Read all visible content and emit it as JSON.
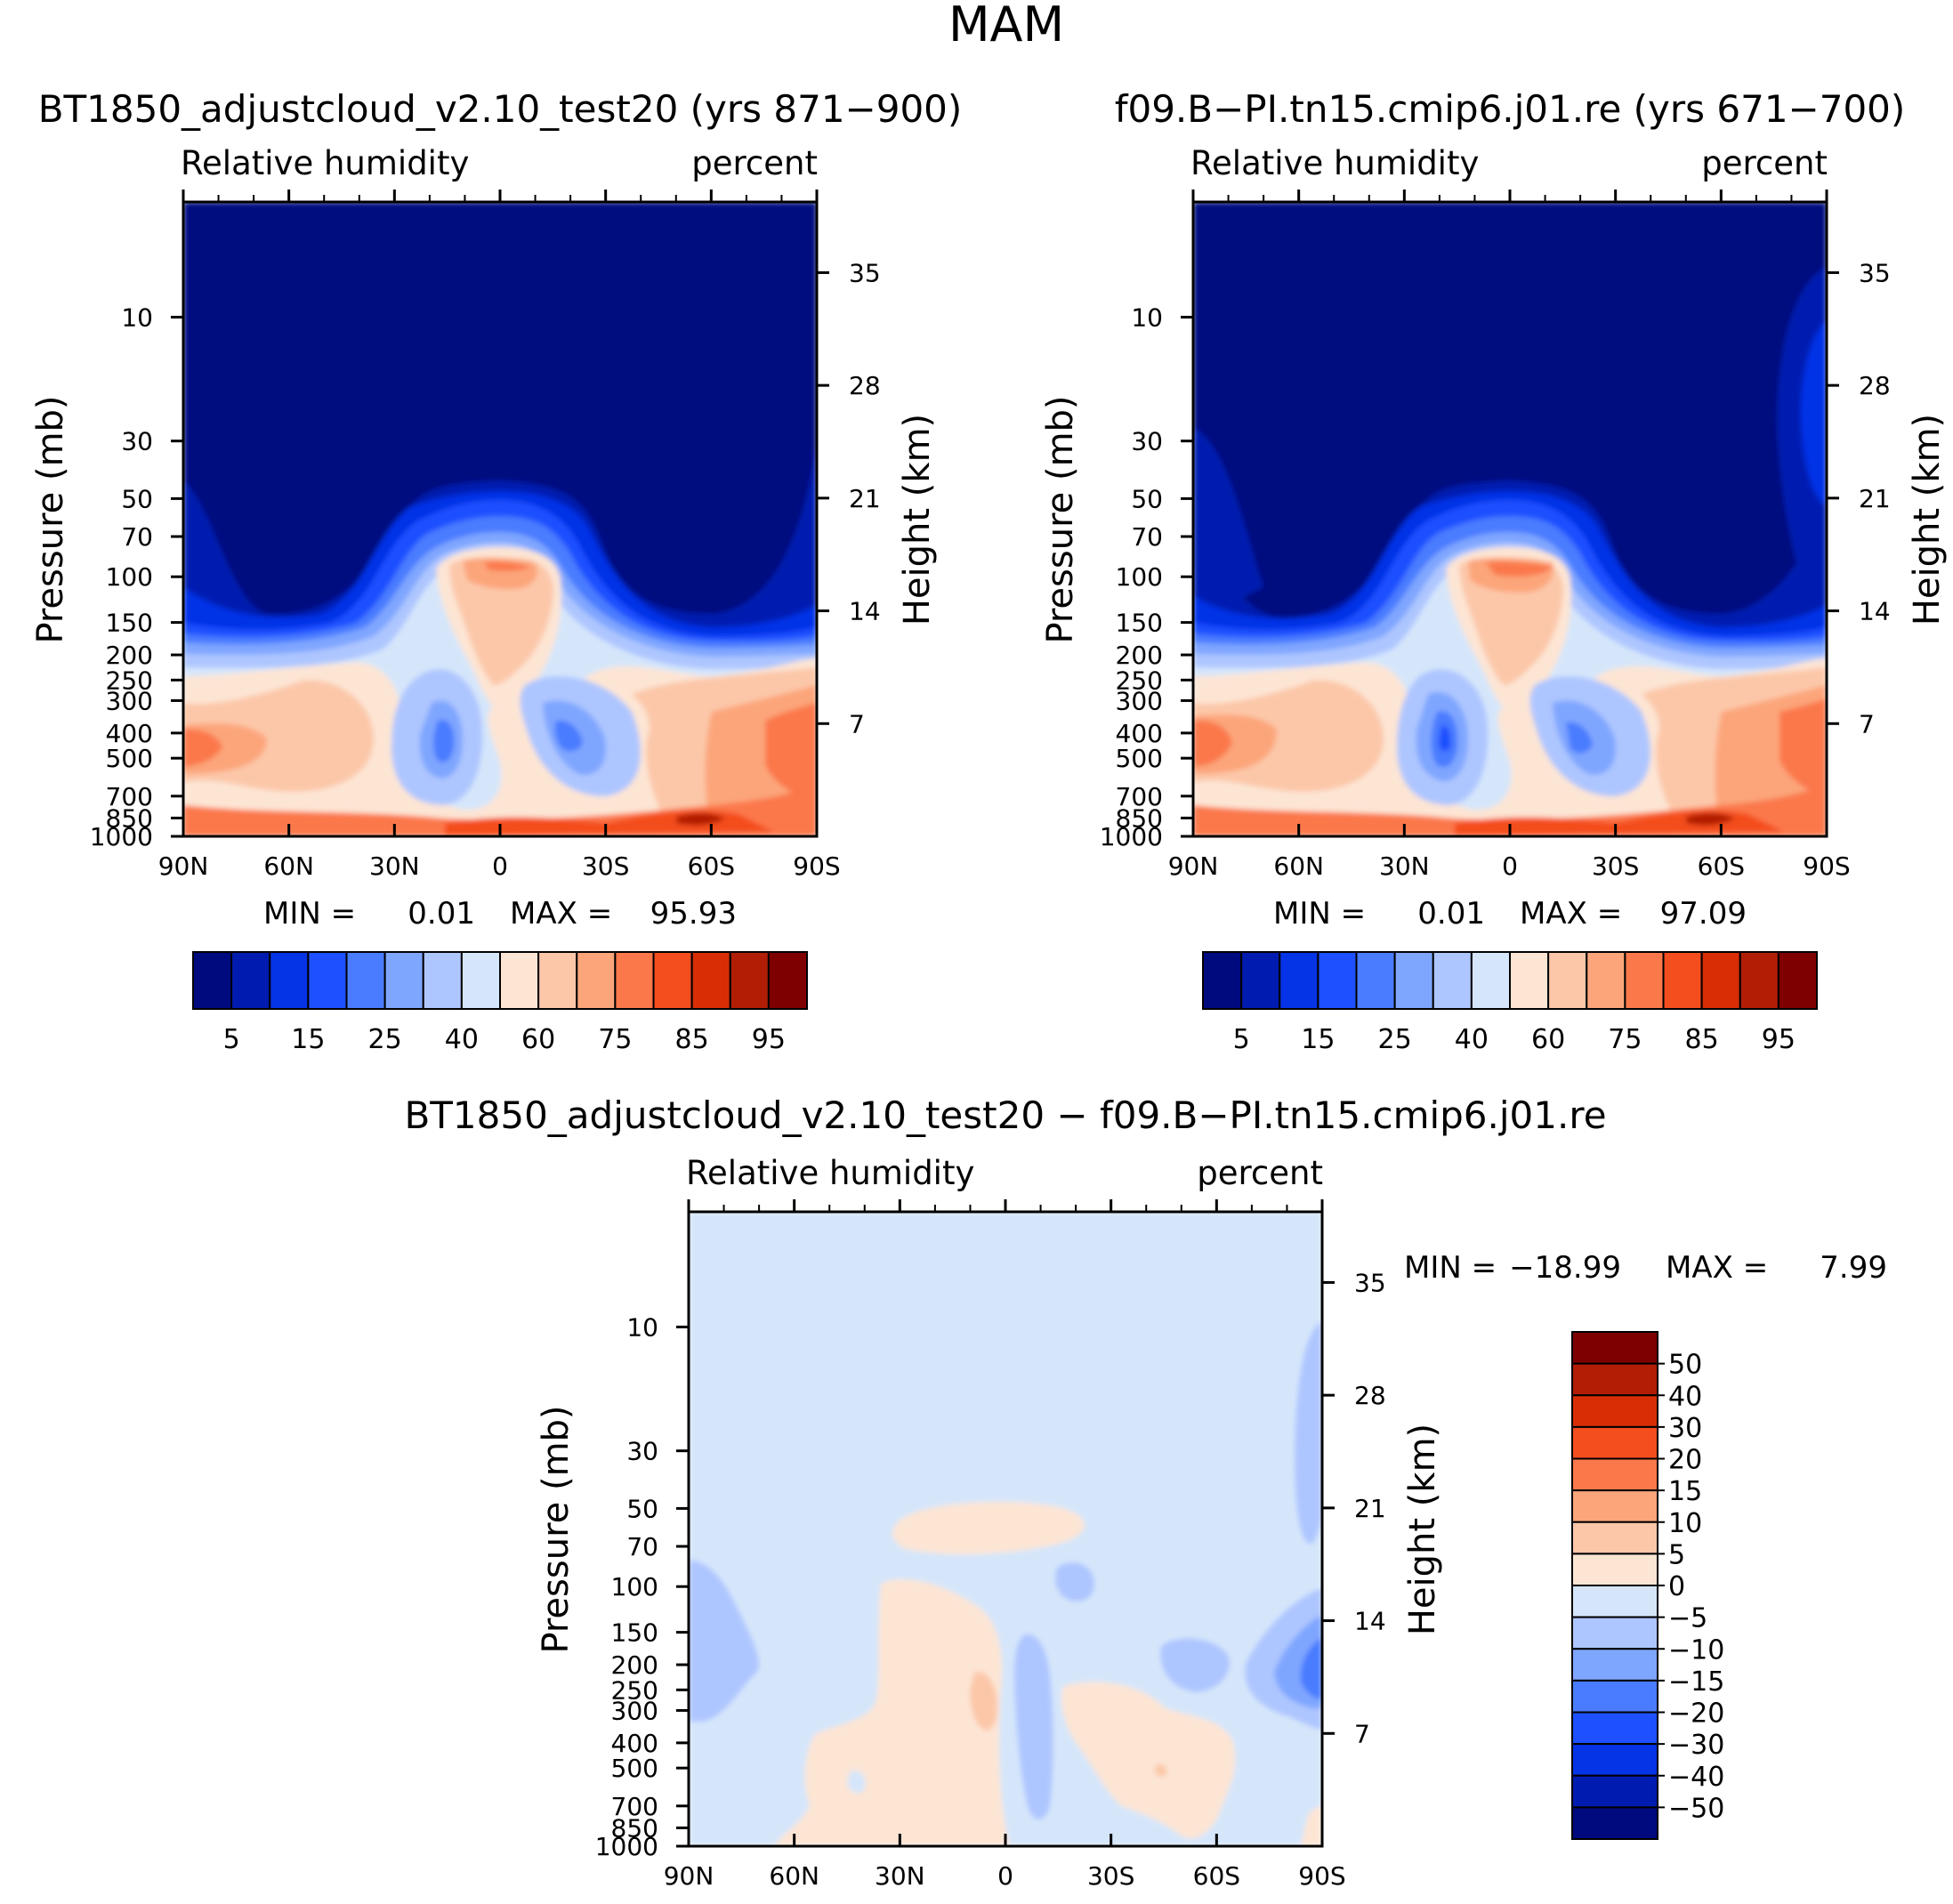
{
  "colors": {
    "abs_scale": [
      "#000a7f",
      "#001cb0",
      "#0533e6",
      "#1e50ff",
      "#4a7cff",
      "#7fa6ff",
      "#aec6ff",
      "#d5e6fb",
      "#fde5d4",
      "#fcc7a9",
      "#fca57a",
      "#fb784b",
      "#f44d1e",
      "#d92e05",
      "#b21d05",
      "#7f0000"
    ],
    "diff_scale": [
      "#000a7f",
      "#001cb0",
      "#0533e6",
      "#1e50ff",
      "#4a7cff",
      "#7fa6ff",
      "#aec6ff",
      "#d5e6fb",
      "#fde5d4",
      "#fcc7a9",
      "#fca57a",
      "#fb784b",
      "#f44d1e",
      "#d92e05",
      "#b21d05",
      "#7f0000"
    ]
  },
  "chart_data": [
    {
      "type": "contour",
      "season_title": "MAM",
      "title": "BT1850_adjustcloud_v2.10_test20 (yrs 871−900)",
      "left_label": "Relative humidity",
      "right_label": "percent",
      "ylabel": "Pressure (mb)",
      "ylabel_right": "Height (km)",
      "x_ticks": [
        "90N",
        "60N",
        "30N",
        "0",
        "30S",
        "60S",
        "90S"
      ],
      "y_ticks": [
        "10",
        "30",
        "50",
        "70",
        "100",
        "150",
        "200",
        "250",
        "300",
        "400",
        "500",
        "700",
        "850",
        "1000"
      ],
      "y_ticks_right": [
        "35",
        "28",
        "21",
        "14",
        "7"
      ],
      "min_label": "MIN =",
      "min_value": "0.01",
      "max_label": "MAX =",
      "max_value": "95.93",
      "colorbar_labels": [
        "5",
        "15",
        "25",
        "40",
        "60",
        "75",
        "85",
        "95"
      ],
      "contour_levels": [
        5,
        10,
        15,
        20,
        25,
        30,
        40,
        50,
        60,
        70,
        75,
        80,
        85,
        90,
        95
      ]
    },
    {
      "type": "contour",
      "title": "f09.B−PI.tn15.cmip6.j01.re (yrs 671−700)",
      "left_label": "Relative humidity",
      "right_label": "percent",
      "ylabel": "Pressure (mb)",
      "ylabel_right": "Height (km)",
      "x_ticks": [
        "90N",
        "60N",
        "30N",
        "0",
        "30S",
        "60S",
        "90S"
      ],
      "y_ticks": [
        "10",
        "30",
        "50",
        "70",
        "100",
        "150",
        "200",
        "250",
        "300",
        "400",
        "500",
        "700",
        "850",
        "1000"
      ],
      "y_ticks_right": [
        "35",
        "28",
        "21",
        "14",
        "7"
      ],
      "min_label": "MIN =",
      "min_value": "0.01",
      "max_label": "MAX =",
      "max_value": "97.09",
      "colorbar_labels": [
        "5",
        "15",
        "25",
        "40",
        "60",
        "75",
        "85",
        "95"
      ],
      "contour_levels": [
        5,
        10,
        15,
        20,
        25,
        30,
        40,
        50,
        60,
        70,
        75,
        80,
        85,
        90,
        95
      ]
    },
    {
      "type": "contour",
      "title": "BT1850_adjustcloud_v2.10_test20 − f09.B−PI.tn15.cmip6.j01.re",
      "left_label": "Relative humidity",
      "right_label": "percent",
      "ylabel": "Pressure (mb)",
      "ylabel_right": "Height (km)",
      "x_ticks": [
        "90N",
        "60N",
        "30N",
        "0",
        "30S",
        "60S",
        "90S"
      ],
      "y_ticks": [
        "10",
        "30",
        "50",
        "70",
        "100",
        "150",
        "200",
        "250",
        "300",
        "400",
        "500",
        "700",
        "850",
        "1000"
      ],
      "y_ticks_right": [
        "35",
        "28",
        "21",
        "14",
        "7"
      ],
      "min_label": "MIN =",
      "min_value": "−18.99",
      "max_label": "MAX =",
      "max_value": "7.99",
      "colorbar_labels": [
        "50",
        "40",
        "30",
        "20",
        "15",
        "10",
        "5",
        "0",
        "−5",
        "−10",
        "−15",
        "−20",
        "−30",
        "−40",
        "−50"
      ],
      "contour_levels": [
        -50,
        -40,
        -30,
        -20,
        -15,
        -10,
        -5,
        0,
        5,
        10,
        15,
        20,
        30,
        40,
        50
      ]
    }
  ]
}
